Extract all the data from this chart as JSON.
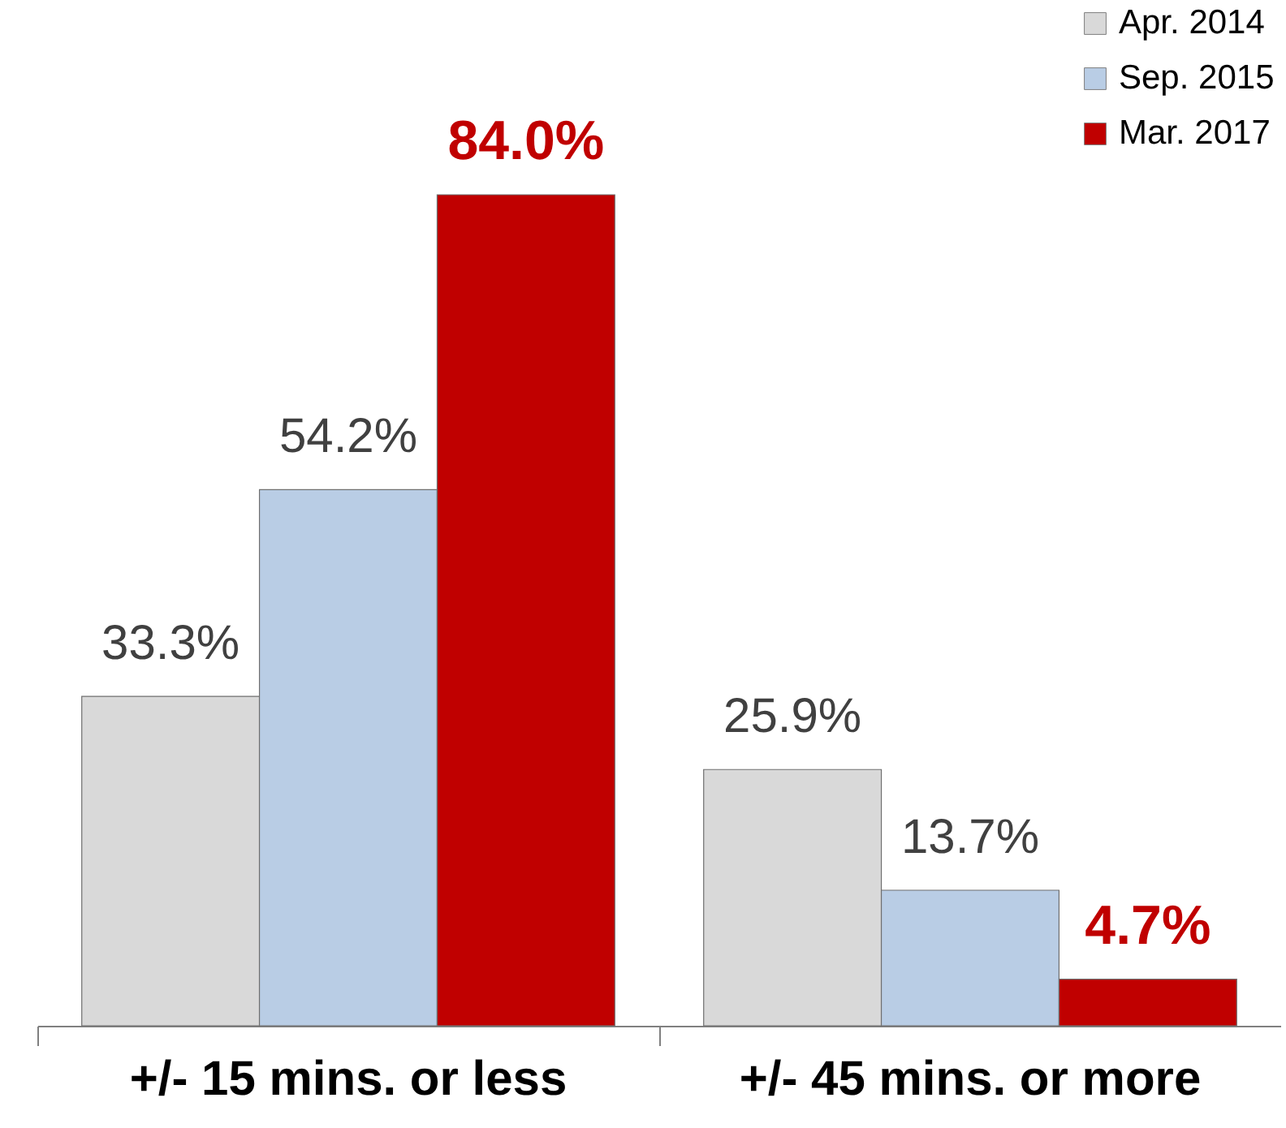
{
  "chart_data": {
    "type": "bar",
    "categories": [
      "+/- 15 mins. or less",
      "+/- 45 mins. or more"
    ],
    "series": [
      {
        "name": "Apr. 2014",
        "color": "#d9d9d9",
        "values": [
          33.3,
          25.9
        ],
        "value_labels": [
          "33.3%",
          "25.9%"
        ]
      },
      {
        "name": "Sep. 2015",
        "color": "#b9cde5",
        "values": [
          54.2,
          13.7
        ],
        "value_labels": [
          "54.2%",
          "13.7%"
        ]
      },
      {
        "name": "Mar. 2017",
        "color": "#c00000",
        "values": [
          84.0,
          4.7
        ],
        "value_labels": [
          "84.0%",
          "4.7%"
        ]
      }
    ],
    "legend": "top right",
    "grid": false
  }
}
